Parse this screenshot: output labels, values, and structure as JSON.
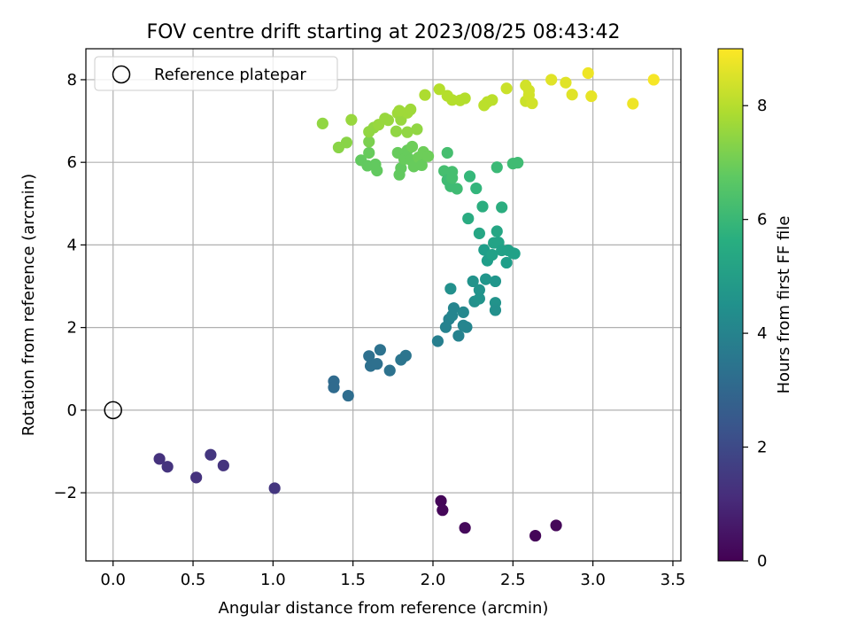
{
  "chart_data": {
    "type": "scatter",
    "title": "FOV centre drift starting at 2023/08/25 08:43:42",
    "xlabel": "Angular distance from reference (arcmin)",
    "ylabel": "Rotation from reference (arcmin)",
    "colorbar_label": "Hours from first FF file",
    "colormap": "viridis",
    "xlim": [
      -0.17,
      3.55
    ],
    "ylim": [
      -3.65,
      8.75
    ],
    "clim": [
      0,
      9
    ],
    "xticks": [
      0.0,
      0.5,
      1.0,
      1.5,
      2.0,
      2.5,
      3.0,
      3.5
    ],
    "xtick_labels": [
      "0.0",
      "0.5",
      "1.0",
      "1.5",
      "2.0",
      "2.5",
      "3.0",
      "3.5"
    ],
    "yticks": [
      -2,
      0,
      2,
      4,
      6,
      8
    ],
    "ytick_labels": [
      "−2",
      "0",
      "2",
      "4",
      "6",
      "8"
    ],
    "cticks": [
      0,
      2,
      4,
      6,
      8
    ],
    "ctick_labels": [
      "0",
      "2",
      "4",
      "6",
      "8"
    ],
    "grid": true,
    "legend": {
      "position": "top-left",
      "entries": [
        {
          "label": "Reference platepar",
          "marker": "open-circle"
        }
      ]
    },
    "reference_point": {
      "x": 0,
      "y": 0
    },
    "points": [
      {
        "x": 2.05,
        "y": -2.2,
        "h": 0.1
      },
      {
        "x": 2.06,
        "y": -2.42,
        "h": 0.15
      },
      {
        "x": 2.2,
        "y": -2.85,
        "h": 0.2
      },
      {
        "x": 2.64,
        "y": -3.04,
        "h": 0.1
      },
      {
        "x": 2.77,
        "y": -2.79,
        "h": 0.15
      },
      {
        "x": 0.29,
        "y": -1.18,
        "h": 1.3
      },
      {
        "x": 0.34,
        "y": -1.37,
        "h": 1.35
      },
      {
        "x": 0.52,
        "y": -1.63,
        "h": 1.3
      },
      {
        "x": 0.61,
        "y": -1.08,
        "h": 1.4
      },
      {
        "x": 0.69,
        "y": -1.34,
        "h": 1.35
      },
      {
        "x": 1.01,
        "y": -1.89,
        "h": 1.4
      },
      {
        "x": 1.38,
        "y": 0.7,
        "h": 3.1
      },
      {
        "x": 1.38,
        "y": 0.55,
        "h": 3.1
      },
      {
        "x": 1.47,
        "y": 0.35,
        "h": 3.2
      },
      {
        "x": 1.6,
        "y": 1.31,
        "h": 3.3
      },
      {
        "x": 1.61,
        "y": 1.07,
        "h": 3.3
      },
      {
        "x": 1.65,
        "y": 1.12,
        "h": 3.3
      },
      {
        "x": 1.67,
        "y": 1.46,
        "h": 3.4
      },
      {
        "x": 1.73,
        "y": 0.96,
        "h": 3.4
      },
      {
        "x": 1.8,
        "y": 1.22,
        "h": 3.5
      },
      {
        "x": 1.83,
        "y": 1.32,
        "h": 3.5
      },
      {
        "x": 2.03,
        "y": 1.67,
        "h": 3.9
      },
      {
        "x": 2.08,
        "y": 2.01,
        "h": 4.0
      },
      {
        "x": 2.1,
        "y": 2.2,
        "h": 4.0
      },
      {
        "x": 2.12,
        "y": 2.29,
        "h": 4.1
      },
      {
        "x": 2.13,
        "y": 2.47,
        "h": 4.1
      },
      {
        "x": 2.16,
        "y": 1.8,
        "h": 4.0
      },
      {
        "x": 2.19,
        "y": 2.37,
        "h": 4.2
      },
      {
        "x": 2.19,
        "y": 2.05,
        "h": 4.1
      },
      {
        "x": 2.21,
        "y": 2.01,
        "h": 4.1
      },
      {
        "x": 2.11,
        "y": 2.94,
        "h": 4.5
      },
      {
        "x": 2.25,
        "y": 3.12,
        "h": 4.6
      },
      {
        "x": 2.26,
        "y": 2.63,
        "h": 4.5
      },
      {
        "x": 2.29,
        "y": 2.7,
        "h": 4.6
      },
      {
        "x": 2.29,
        "y": 2.91,
        "h": 4.6
      },
      {
        "x": 2.33,
        "y": 3.17,
        "h": 4.7
      },
      {
        "x": 2.39,
        "y": 3.12,
        "h": 4.7
      },
      {
        "x": 2.39,
        "y": 2.6,
        "h": 4.6
      },
      {
        "x": 2.39,
        "y": 2.42,
        "h": 4.5
      },
      {
        "x": 2.32,
        "y": 3.88,
        "h": 5.0
      },
      {
        "x": 2.34,
        "y": 3.62,
        "h": 5.0
      },
      {
        "x": 2.37,
        "y": 3.76,
        "h": 5.1
      },
      {
        "x": 2.38,
        "y": 4.05,
        "h": 5.2
      },
      {
        "x": 2.4,
        "y": 4.33,
        "h": 5.3
      },
      {
        "x": 2.41,
        "y": 4.06,
        "h": 5.2
      },
      {
        "x": 2.43,
        "y": 3.87,
        "h": 5.1
      },
      {
        "x": 2.46,
        "y": 3.57,
        "h": 5.0
      },
      {
        "x": 2.47,
        "y": 3.87,
        "h": 5.1
      },
      {
        "x": 2.5,
        "y": 3.8,
        "h": 5.1
      },
      {
        "x": 2.51,
        "y": 3.79,
        "h": 5.1
      },
      {
        "x": 2.29,
        "y": 4.28,
        "h": 5.3
      },
      {
        "x": 2.22,
        "y": 4.64,
        "h": 5.5
      },
      {
        "x": 2.31,
        "y": 4.93,
        "h": 5.6
      },
      {
        "x": 2.43,
        "y": 4.91,
        "h": 5.6
      },
      {
        "x": 2.23,
        "y": 5.66,
        "h": 6.0
      },
      {
        "x": 2.27,
        "y": 5.37,
        "h": 5.9
      },
      {
        "x": 2.4,
        "y": 5.88,
        "h": 6.1
      },
      {
        "x": 2.5,
        "y": 5.97,
        "h": 6.2
      },
      {
        "x": 2.53,
        "y": 5.99,
        "h": 6.2
      },
      {
        "x": 2.09,
        "y": 6.23,
        "h": 6.3
      },
      {
        "x": 2.07,
        "y": 5.79,
        "h": 6.3
      },
      {
        "x": 2.09,
        "y": 5.57,
        "h": 6.2
      },
      {
        "x": 2.11,
        "y": 5.42,
        "h": 6.2
      },
      {
        "x": 2.12,
        "y": 5.77,
        "h": 6.3
      },
      {
        "x": 2.15,
        "y": 5.36,
        "h": 6.2
      },
      {
        "x": 2.12,
        "y": 5.62,
        "h": 6.3
      },
      {
        "x": 1.55,
        "y": 6.05,
        "h": 6.8
      },
      {
        "x": 1.59,
        "y": 5.92,
        "h": 6.8
      },
      {
        "x": 1.6,
        "y": 6.23,
        "h": 6.9
      },
      {
        "x": 1.64,
        "y": 5.95,
        "h": 6.8
      },
      {
        "x": 1.65,
        "y": 5.8,
        "h": 6.8
      },
      {
        "x": 1.78,
        "y": 6.23,
        "h": 6.9
      },
      {
        "x": 1.79,
        "y": 5.7,
        "h": 6.8
      },
      {
        "x": 1.8,
        "y": 5.86,
        "h": 6.8
      },
      {
        "x": 1.82,
        "y": 6.08,
        "h": 6.9
      },
      {
        "x": 1.84,
        "y": 6.29,
        "h": 6.9
      },
      {
        "x": 1.86,
        "y": 6.06,
        "h": 6.9
      },
      {
        "x": 1.87,
        "y": 6.38,
        "h": 7.0
      },
      {
        "x": 1.88,
        "y": 5.9,
        "h": 6.9
      },
      {
        "x": 1.91,
        "y": 6.12,
        "h": 7.0
      },
      {
        "x": 1.93,
        "y": 5.93,
        "h": 6.9
      },
      {
        "x": 1.94,
        "y": 6.25,
        "h": 7.0
      },
      {
        "x": 1.97,
        "y": 6.15,
        "h": 7.0
      },
      {
        "x": 1.6,
        "y": 6.5,
        "h": 7.2
      },
      {
        "x": 1.31,
        "y": 6.94,
        "h": 7.5
      },
      {
        "x": 1.41,
        "y": 6.36,
        "h": 7.4
      },
      {
        "x": 1.46,
        "y": 6.48,
        "h": 7.4
      },
      {
        "x": 1.49,
        "y": 7.03,
        "h": 7.6
      },
      {
        "x": 1.6,
        "y": 6.74,
        "h": 7.5
      },
      {
        "x": 1.63,
        "y": 6.84,
        "h": 7.5
      },
      {
        "x": 1.66,
        "y": 6.91,
        "h": 7.6
      },
      {
        "x": 1.7,
        "y": 7.06,
        "h": 7.6
      },
      {
        "x": 1.72,
        "y": 7.02,
        "h": 7.6
      },
      {
        "x": 1.77,
        "y": 6.75,
        "h": 7.5
      },
      {
        "x": 1.78,
        "y": 7.19,
        "h": 7.7
      },
      {
        "x": 1.8,
        "y": 7.03,
        "h": 7.6
      },
      {
        "x": 1.84,
        "y": 6.73,
        "h": 7.5
      },
      {
        "x": 1.84,
        "y": 7.2,
        "h": 7.7
      },
      {
        "x": 1.86,
        "y": 7.28,
        "h": 7.7
      },
      {
        "x": 1.9,
        "y": 6.8,
        "h": 7.5
      },
      {
        "x": 1.79,
        "y": 7.25,
        "h": 7.7
      },
      {
        "x": 1.95,
        "y": 7.63,
        "h": 7.9
      },
      {
        "x": 2.04,
        "y": 7.77,
        "h": 8.0
      },
      {
        "x": 2.09,
        "y": 7.61,
        "h": 8.0
      },
      {
        "x": 2.12,
        "y": 7.51,
        "h": 8.0
      },
      {
        "x": 2.17,
        "y": 7.5,
        "h": 8.0
      },
      {
        "x": 2.2,
        "y": 7.55,
        "h": 8.0
      },
      {
        "x": 2.32,
        "y": 7.38,
        "h": 8.1
      },
      {
        "x": 2.34,
        "y": 7.46,
        "h": 8.1
      },
      {
        "x": 2.37,
        "y": 7.51,
        "h": 8.1
      },
      {
        "x": 2.46,
        "y": 7.79,
        "h": 8.3
      },
      {
        "x": 2.58,
        "y": 7.86,
        "h": 8.4
      },
      {
        "x": 2.58,
        "y": 7.48,
        "h": 8.3
      },
      {
        "x": 2.6,
        "y": 7.63,
        "h": 8.4
      },
      {
        "x": 2.6,
        "y": 7.74,
        "h": 8.4
      },
      {
        "x": 2.62,
        "y": 7.43,
        "h": 8.4
      },
      {
        "x": 2.74,
        "y": 8.0,
        "h": 8.6
      },
      {
        "x": 2.83,
        "y": 7.93,
        "h": 8.6
      },
      {
        "x": 2.87,
        "y": 7.64,
        "h": 8.6
      },
      {
        "x": 2.97,
        "y": 8.16,
        "h": 8.8
      },
      {
        "x": 2.99,
        "y": 7.6,
        "h": 8.7
      },
      {
        "x": 3.25,
        "y": 7.42,
        "h": 8.8
      },
      {
        "x": 3.38,
        "y": 8.0,
        "h": 8.9
      }
    ]
  }
}
